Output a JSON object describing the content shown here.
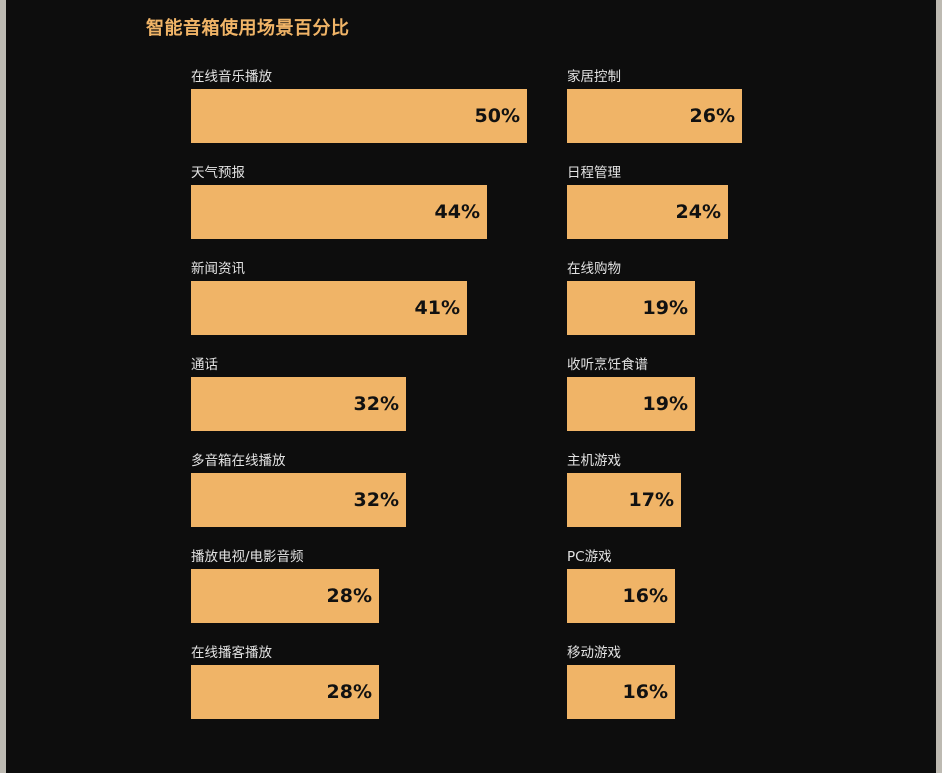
{
  "chart_data": {
    "type": "bar",
    "title": "智能音箱使用场景百分比",
    "categories": [
      "在线音乐播放",
      "天气预报",
      "新闻资讯",
      "通话",
      "多音箱在线播放",
      "播放电视/电影音频",
      "在线播客播放",
      "家居控制",
      "日程管理",
      "在线购物",
      "收听烹饪食谱",
      "主机游戏",
      "PC游戏",
      "移动游戏"
    ],
    "values": [
      50,
      44,
      41,
      32,
      32,
      28,
      28,
      26,
      24,
      19,
      19,
      17,
      16,
      16
    ],
    "value_labels": [
      "50%",
      "44%",
      "41%",
      "32%",
      "32%",
      "28%",
      "28%",
      "26%",
      "24%",
      "19%",
      "19%",
      "17%",
      "16%",
      "16%"
    ],
    "unit": "%",
    "layout": "two columns of 7",
    "colors": {
      "bar": "#f0b467",
      "background": "#0d0d0d",
      "title": "#f0b467",
      "label": "#e2e2e2",
      "value": "#111111"
    }
  }
}
